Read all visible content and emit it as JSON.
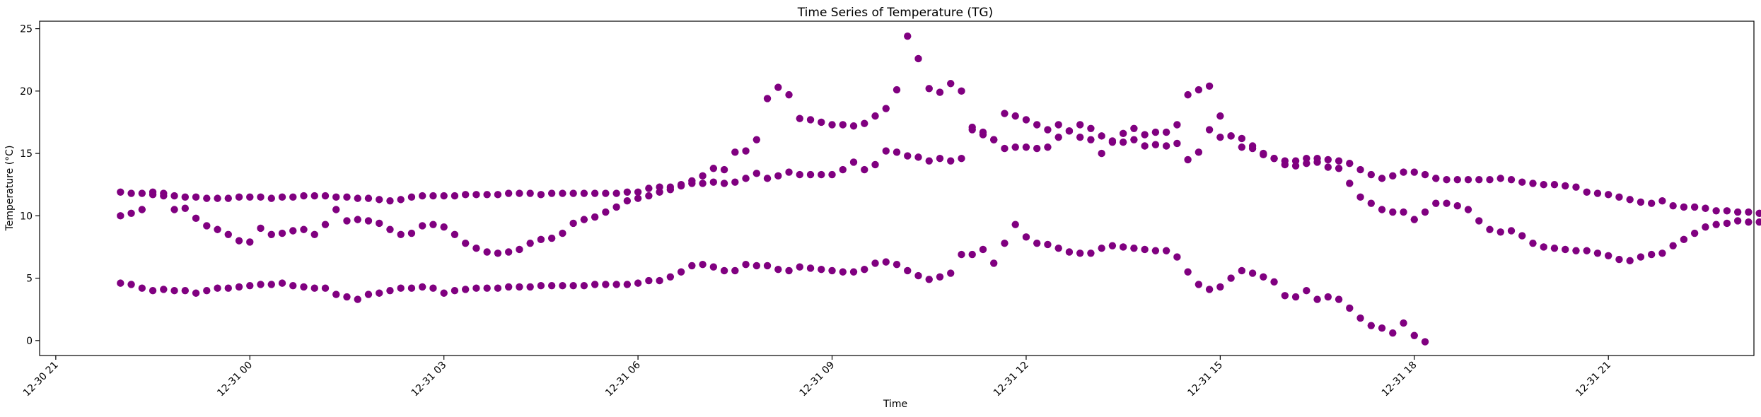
{
  "chart_data": {
    "type": "scatter",
    "title": "Time Series of Temperature (TG)",
    "xlabel": "Time",
    "ylabel": "Temperature (°C)",
    "marker_color": "#800080",
    "grid": false,
    "legend": "none",
    "xlim": [
      "2024-12-30 20:45",
      "2024-12-31 23:15"
    ],
    "ylim": [
      -1.2,
      25.6
    ],
    "x_ticks": [
      {
        "value": "2024-12-30 21:00",
        "label": "12-30 21"
      },
      {
        "value": "2024-12-31 00:00",
        "label": "12-31 00"
      },
      {
        "value": "2024-12-31 03:00",
        "label": "12-31 03"
      },
      {
        "value": "2024-12-31 06:00",
        "label": "12-31 06"
      },
      {
        "value": "2024-12-31 09:00",
        "label": "12-31 09"
      },
      {
        "value": "2024-12-31 12:00",
        "label": "12-31 12"
      },
      {
        "value": "2024-12-31 15:00",
        "label": "12-31 15"
      },
      {
        "value": "2024-12-31 18:00",
        "label": "12-31 18"
      },
      {
        "value": "2024-12-31 21:00",
        "label": "12-31 21"
      }
    ],
    "y_ticks": [
      0,
      5,
      10,
      15,
      20,
      25
    ],
    "series": [
      {
        "start": "2024-12-30 22:00",
        "interval_minutes": 10,
        "values": [
          11.9,
          11.8,
          11.8,
          11.9,
          11.8,
          11.6,
          11.5,
          11.5,
          11.4,
          11.4,
          11.4,
          11.5,
          11.5,
          11.5,
          11.4,
          11.5,
          11.5,
          11.6,
          11.6,
          11.6,
          11.5,
          11.5,
          11.4,
          11.4,
          11.3,
          11.2,
          11.3,
          11.5,
          11.6,
          11.6,
          11.6,
          11.6,
          11.7,
          11.7,
          11.7,
          11.7,
          11.8,
          11.8,
          11.8,
          11.7,
          11.8,
          11.8,
          11.8,
          11.8,
          11.8,
          11.8,
          11.8,
          11.9,
          11.9,
          12.2,
          12.3,
          12.3,
          12.4,
          12.6,
          12.6,
          12.7,
          12.6,
          12.7,
          13.0,
          13.4,
          13.0,
          13.2,
          13.5,
          13.3,
          13.3,
          13.3,
          13.3,
          13.7,
          14.3,
          13.7,
          14.1,
          15.2,
          15.1,
          14.8,
          14.7,
          14.4,
          14.6,
          14.4,
          14.6,
          16.9,
          16.5,
          16.1,
          18.2,
          18.0,
          17.7,
          17.3,
          16.9,
          17.3,
          16.8,
          16.3,
          16.1,
          15.0,
          15.9,
          16.6,
          17.0,
          16.5,
          16.7,
          16.7,
          17.3,
          14.5,
          15.1,
          16.9,
          16.3,
          16.4,
          15.5,
          15.4,
          14.9,
          14.6,
          14.4,
          14.4,
          14.6,
          14.6,
          14.5,
          14.4,
          14.2,
          13.7,
          13.3,
          13.0,
          13.2,
          13.5,
          13.5,
          13.3,
          13.0,
          12.9,
          12.9,
          12.9,
          12.9,
          12.9,
          13.0,
          12.9,
          12.7,
          12.6,
          12.5,
          12.5,
          12.4,
          12.3,
          11.9,
          11.8,
          11.7,
          11.5,
          11.3,
          11.1,
          11.0,
          11.2,
          10.8,
          10.7,
          10.7,
          10.6,
          10.4,
          10.4,
          10.3,
          10.3,
          10.2,
          10.2,
          10.3,
          10.4,
          10.4
        ]
      },
      {
        "start": "2024-12-30 22:00",
        "interval_minutes": 10,
        "values": [
          10.0,
          10.2,
          10.5,
          11.7,
          11.6,
          10.5,
          10.6,
          9.8,
          9.2,
          8.9,
          8.5,
          8.0,
          7.9,
          9.0,
          8.5,
          8.6,
          8.8,
          8.9,
          8.5,
          9.3,
          10.5,
          9.6,
          9.7,
          9.6,
          9.4,
          8.9,
          8.5,
          8.6,
          9.2,
          9.3,
          9.1,
          8.5,
          7.8,
          7.4,
          7.1,
          7.0,
          7.1,
          7.3,
          7.8,
          8.1,
          8.2,
          8.6,
          9.4,
          9.7,
          9.9,
          10.3,
          10.7,
          11.2,
          11.4,
          11.6,
          11.9,
          12.1,
          12.5,
          12.8,
          13.2,
          13.8,
          13.7,
          15.1,
          15.2,
          16.1,
          19.4,
          20.3,
          19.7,
          17.8,
          17.7,
          17.5,
          17.3,
          17.3,
          17.2,
          17.4,
          18.0,
          18.6,
          20.1,
          24.4,
          22.6,
          20.2,
          19.9,
          20.6,
          20.0,
          17.1,
          16.7,
          16.1,
          15.4,
          15.5,
          15.5,
          15.4,
          15.5,
          16.3,
          16.8,
          17.3,
          17.0,
          16.4,
          16.0,
          15.9,
          16.1,
          15.6,
          15.7,
          15.6,
          15.8,
          19.7,
          20.1,
          20.4,
          18.0,
          16.4,
          16.2,
          15.6,
          15.0,
          14.6,
          14.1,
          14.0,
          14.2,
          14.3,
          13.9,
          13.8,
          12.6,
          11.5,
          11.0,
          10.5,
          10.3,
          10.3,
          9.7,
          10.3,
          11.0,
          11.0,
          10.8,
          10.5,
          9.6,
          8.9,
          8.7,
          8.8,
          8.4,
          7.8,
          7.5,
          7.4,
          7.3,
          7.2,
          7.2,
          7.0,
          6.8,
          6.5,
          6.4,
          6.7,
          6.9,
          7.0,
          7.6,
          8.1,
          8.6,
          9.1,
          9.3,
          9.4,
          9.6,
          9.5,
          9.5
        ]
      },
      {
        "start": "2024-12-30 22:00",
        "interval_minutes": 10,
        "values": [
          4.6,
          4.5,
          4.2,
          4.0,
          4.1,
          4.0,
          4.0,
          3.8,
          4.0,
          4.2,
          4.2,
          4.3,
          4.4,
          4.5,
          4.5,
          4.6,
          4.4,
          4.3,
          4.2,
          4.2,
          3.7,
          3.5,
          3.3,
          3.7,
          3.8,
          4.0,
          4.2,
          4.2,
          4.3,
          4.2,
          3.8,
          4.0,
          4.1,
          4.2,
          4.2,
          4.2,
          4.3,
          4.3,
          4.3,
          4.4,
          4.4,
          4.4,
          4.4,
          4.4,
          4.5,
          4.5,
          4.5,
          4.5,
          4.6,
          4.8,
          4.8,
          5.1,
          5.5,
          6.0,
          6.1,
          5.9,
          5.6,
          5.6,
          6.1,
          6.0,
          6.0,
          5.7,
          5.6,
          5.9,
          5.8,
          5.7,
          5.6,
          5.5,
          5.5,
          5.7,
          6.2,
          6.3,
          6.1,
          5.6,
          5.2,
          4.9,
          5.1,
          5.4,
          6.9,
          6.9,
          7.3,
          6.2,
          7.8,
          9.3,
          8.3,
          7.8,
          7.7,
          7.4,
          7.1,
          7.0,
          7.0,
          7.4,
          7.6,
          7.5,
          7.4,
          7.3,
          7.2,
          7.2,
          6.7,
          5.5,
          4.5,
          4.1,
          4.3,
          5.0,
          5.6,
          5.4,
          5.1,
          4.7,
          3.6,
          3.5,
          4.0,
          3.3,
          3.5,
          3.3,
          2.6,
          1.8,
          1.2,
          1.0,
          0.6,
          1.4,
          0.4,
          -0.1
        ]
      }
    ]
  }
}
